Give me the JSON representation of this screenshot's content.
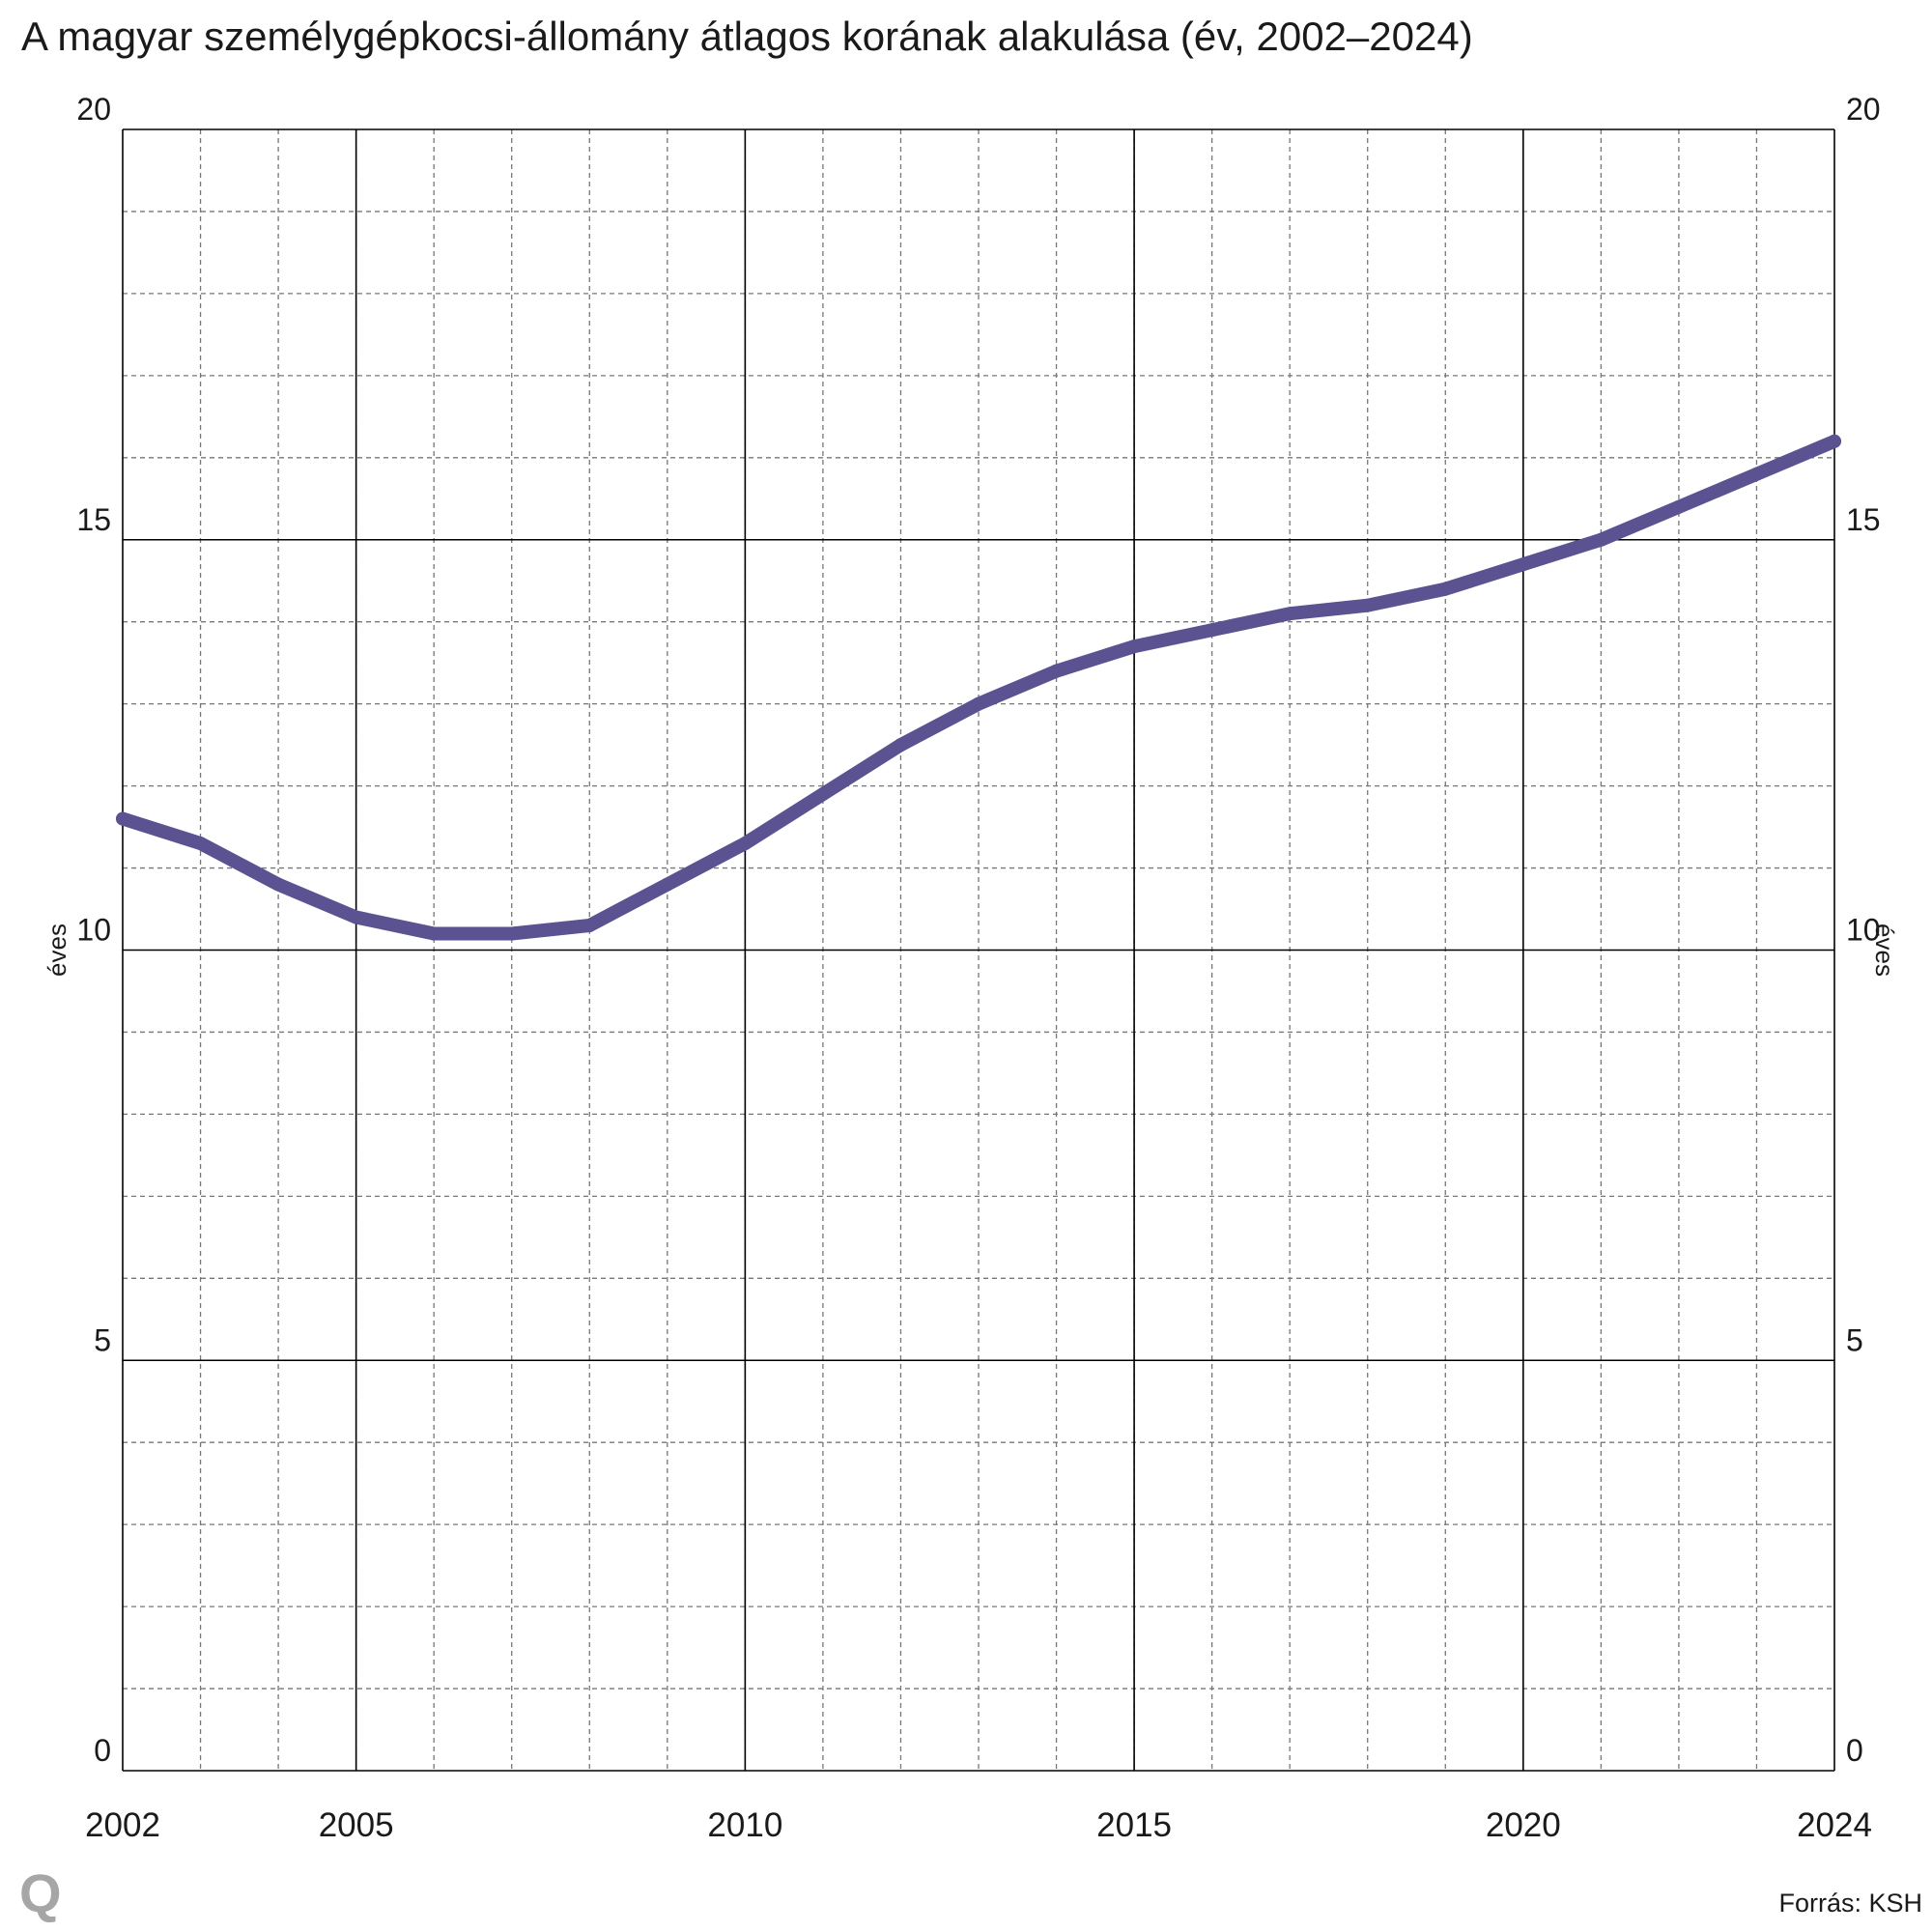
{
  "title": "A magyar személygépkocsi-állomány átlagos korának alakulása (év, 2002–2024)",
  "source": "Forrás: KSH",
  "brand": {
    "logo_text": "Q",
    "logo_color": "#a6a6a6"
  },
  "colors": {
    "line": "#5a5291",
    "grid_major": "#000000",
    "grid_minor": "#777777"
  },
  "chart_data": {
    "type": "line",
    "title": "A magyar személygépkocsi-állomány átlagos korának alakulása (év, 2002–2024)",
    "x": [
      2002,
      2003,
      2004,
      2005,
      2006,
      2007,
      2008,
      2009,
      2010,
      2011,
      2012,
      2013,
      2014,
      2015,
      2016,
      2017,
      2018,
      2019,
      2020,
      2021,
      2022,
      2023,
      2024
    ],
    "series": [
      {
        "values": [
          11.6,
          11.3,
          10.8,
          10.4,
          10.2,
          10.2,
          10.3,
          10.8,
          11.3,
          11.9,
          12.5,
          13.0,
          13.4,
          13.7,
          13.9,
          14.1,
          14.2,
          14.4,
          14.7,
          15.0,
          15.4,
          15.8,
          16.2
        ]
      }
    ],
    "xlim": [
      2002,
      2024
    ],
    "ylim": [
      0,
      20
    ],
    "x_ticks": [
      "2002",
      "2005",
      "2010",
      "2015",
      "2020",
      "2024"
    ],
    "y_ticks": [
      "0",
      "5",
      "10",
      "15",
      "20"
    ],
    "ylabel_left": "éves",
    "ylabel_right": "éves",
    "grid": true,
    "minor_grid": true,
    "legend": false
  }
}
